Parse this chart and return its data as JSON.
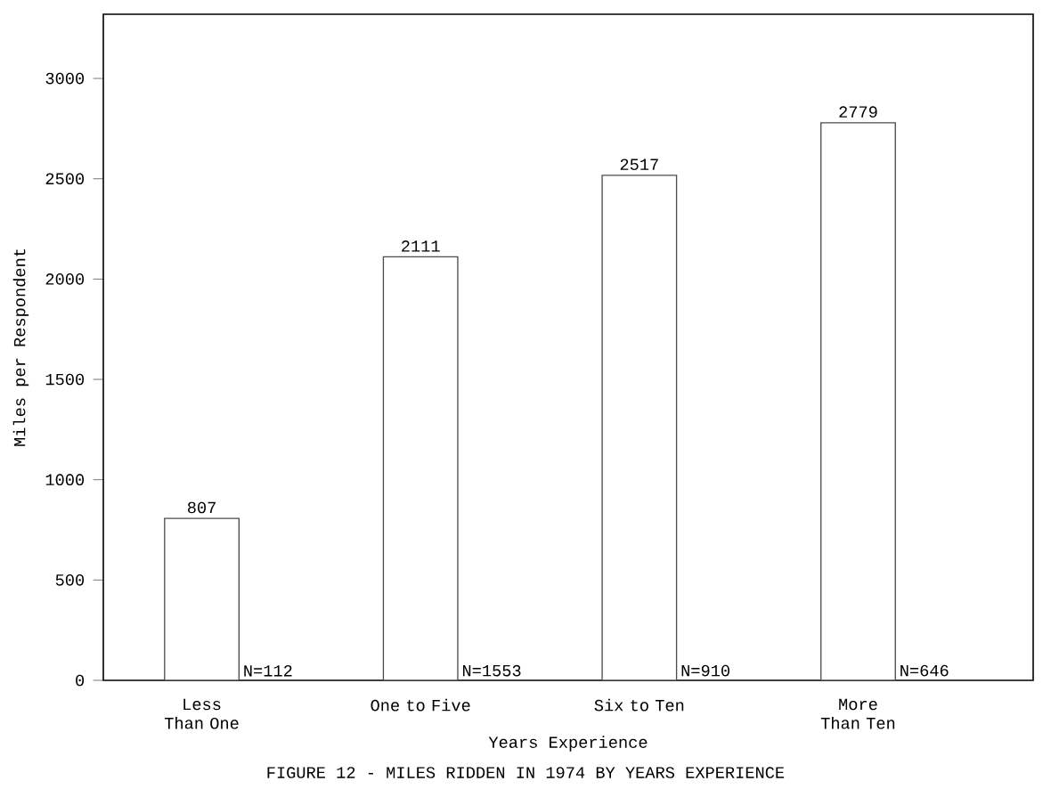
{
  "chart_data": {
    "type": "bar",
    "title": "FIGURE 12 - MILES RIDDEN IN 1974 BY YEARS EXPERIENCE",
    "xlabel": "Years Experience",
    "ylabel": "Miles per Respondent",
    "categories": [
      "Less Than One",
      "One to Five",
      "Six to Ten",
      "More Than Ten"
    ],
    "values": [
      807,
      2111,
      2517,
      2779
    ],
    "color": "#ffffff",
    "data_labels": true,
    "ylim": [
      0,
      3320
    ],
    "yticks": [
      0,
      500,
      1000,
      1500,
      2000,
      2500,
      3000
    ],
    "grid": false,
    "annotations": [
      {
        "text": "N=112",
        "x": "Less Than One",
        "y": 0
      },
      {
        "text": "N=1553",
        "x": "One to Five",
        "y": 0
      },
      {
        "text": "N=910",
        "x": "Six to Ten",
        "y": 0
      },
      {
        "text": "N=646",
        "x": "More Than Ten",
        "y": 0
      }
    ]
  }
}
